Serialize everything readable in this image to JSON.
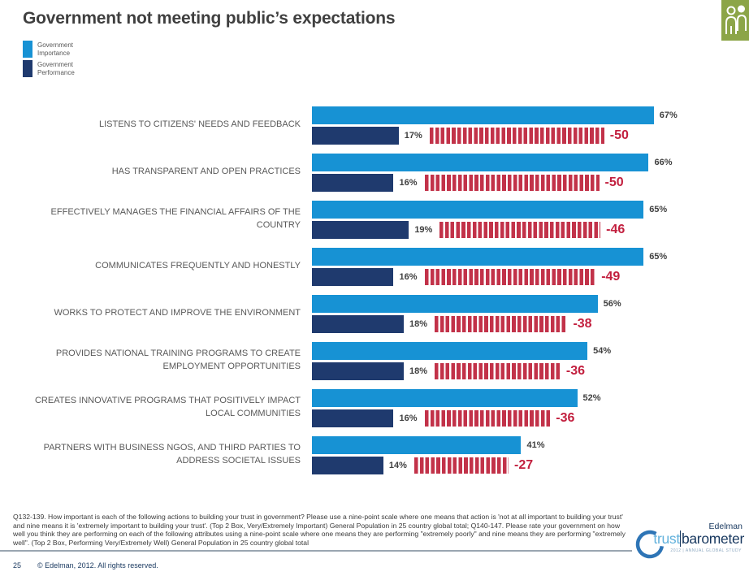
{
  "title": "Government not meeting public’s expectations",
  "legend": [
    {
      "line1": "Government",
      "line2": "Importance",
      "color": "#1792D4"
    },
    {
      "line1": "Government",
      "line2": "Performance",
      "color": "#1F3A6E"
    }
  ],
  "chart_data": {
    "type": "bar",
    "orientation": "horizontal",
    "title": "Government not meeting public’s expectations",
    "value_suffix": "%",
    "xlim": [
      0,
      100
    ],
    "grid": false,
    "legend_position": "top-left",
    "categories": [
      "LISTENS TO CITIZENS' NEEDS AND FEEDBACK",
      "HAS TRANSPARENT AND OPEN PRACTICES",
      "EFFECTIVELY MANAGES THE FINANCIAL AFFAIRS OF THE COUNTRY",
      "COMMUNICATES FREQUENTLY AND HONESTLY",
      "WORKS TO PROTECT AND IMPROVE THE ENVIRONMENT",
      "PROVIDES NATIONAL TRAINING PROGRAMS TO CREATE EMPLOYMENT OPPORTUNITIES",
      "CREATES INNOVATIVE PROGRAMS THAT POSITIVELY IMPACT LOCAL COMMUNITIES",
      "PARTNERS WITH BUSINESS NGOS, AND THIRD PARTIES TO ADDRESS SOCIETAL ISSUES"
    ],
    "series": [
      {
        "name": "Government Importance",
        "color": "#1792D4",
        "values": [
          67,
          66,
          65,
          65,
          56,
          54,
          52,
          41
        ]
      },
      {
        "name": "Government Performance",
        "color": "#1F3A6E",
        "values": [
          17,
          16,
          19,
          16,
          18,
          18,
          16,
          14
        ]
      }
    ],
    "gap_series": {
      "name": "Performance minus Importance gap",
      "color": "#C23249",
      "text_color": "#C21F3E",
      "values": [
        -50,
        -50,
        -46,
        -49,
        -38,
        -36,
        -36,
        -27
      ]
    }
  },
  "footnote": "Q132-139. How important is each of the following actions to building your trust in government? Please use a nine-point scale where one means that action is 'not at all important to building your trust' and nine means it is 'extremely important to building your trust'. (Top 2 Box, Very/Extremely Important) General Population in 25 country global total; Q140-147. Please rate your government on how well you think they are performing on each of the following attributes using a nine-point scale where one means they are performing \"extremely poorly\" and nine means they are performing \"extremely well\". (Top 2 Box, Performing Very/Extremely Well) General Population in 25 country global total",
  "footer": {
    "page": "25",
    "copyright": "© Edelman, 2012. All rights reserved."
  },
  "logo": {
    "brand": "Edelman",
    "trust": "trust",
    "barometer": "barometer",
    "tagline": "2012 | ANNUAL GLOBAL STUDY"
  },
  "colors": {
    "importance": "#1792D4",
    "performance": "#1F3A6E",
    "gap_bar": "#C23249",
    "gap_text": "#C21F3E",
    "title_text": "#3F3F3F",
    "label_text": "#595959",
    "icon_green": "#8CA548"
  }
}
